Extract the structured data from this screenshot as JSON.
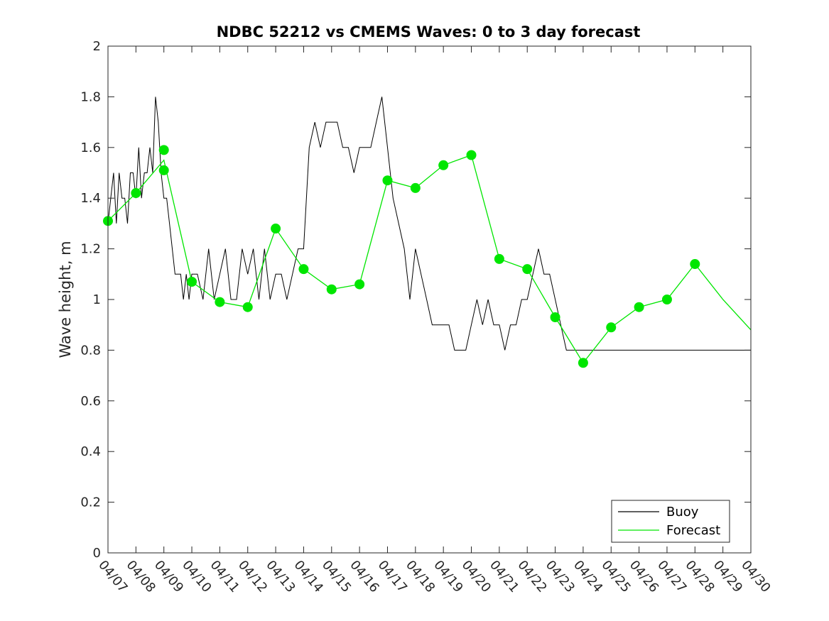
{
  "chart_data": {
    "type": "line",
    "title": "NDBC 52212 vs CMEMS Waves: 0 to 3 day forecast",
    "xlabel": "",
    "ylabel": "Wave height, m",
    "ylim": [
      0,
      2
    ],
    "yticks": [
      "0",
      "0.2",
      "0.4",
      "0.6",
      "0.8",
      "1",
      "1.2",
      "1.4",
      "1.6",
      "1.8",
      "2"
    ],
    "xlim": [
      "04/07",
      "04/30"
    ],
    "xticks": [
      "04/07",
      "04/08",
      "04/09",
      "04/10",
      "04/11",
      "04/12",
      "04/13",
      "04/14",
      "04/15",
      "04/16",
      "04/17",
      "04/18",
      "04/19",
      "04/20",
      "04/21",
      "04/22",
      "04/23",
      "04/24",
      "04/25",
      "04/26",
      "04/27",
      "04/28",
      "04/29",
      "04/30"
    ],
    "grid": false,
    "legend": {
      "position": "bottom-right",
      "entries": [
        {
          "label": "Buoy",
          "color": "#000000"
        },
        {
          "label": "Forecast",
          "color": "#00e600"
        }
      ]
    },
    "series": [
      {
        "name": "Buoy",
        "color": "#000000",
        "x": [
          0,
          0.1,
          0.2,
          0.3,
          0.4,
          0.5,
          0.6,
          0.7,
          0.8,
          0.9,
          1.0,
          1.1,
          1.2,
          1.3,
          1.4,
          1.5,
          1.6,
          1.7,
          1.8,
          1.9,
          2.0,
          2.1,
          2.2,
          2.3,
          2.4,
          2.5,
          2.6,
          2.7,
          2.8,
          2.9,
          3.0,
          3.2,
          3.4,
          3.6,
          3.8,
          4.0,
          4.2,
          4.4,
          4.6,
          4.8,
          5.0,
          5.2,
          5.4,
          5.6,
          5.8,
          6.0,
          6.2,
          6.4,
          6.6,
          6.8,
          7.0,
          7.2,
          7.4,
          7.6,
          7.8,
          8.0,
          8.2,
          8.4,
          8.6,
          8.8,
          9.0,
          9.2,
          9.4,
          9.6,
          9.8,
          10.0,
          10.2,
          10.4,
          10.6,
          10.8,
          11.0,
          11.2,
          11.4,
          11.6,
          11.8,
          12.0,
          12.2,
          12.4,
          12.6,
          12.8,
          13.0,
          13.2,
          13.4,
          13.6,
          13.8,
          14.0,
          14.2,
          14.4,
          14.6,
          14.8,
          15.0,
          15.2,
          15.4,
          15.6,
          15.8,
          16.0,
          16.2,
          16.4,
          16.6,
          16.8,
          17.0,
          17.5,
          18.0,
          18.5,
          19.0,
          19.2,
          19.4,
          19.6,
          19.8,
          20.0,
          20.2,
          20.4,
          20.6,
          20.8,
          21.0,
          21.2,
          21.4,
          21.6,
          21.8,
          22.0,
          22.2,
          22.4,
          22.6,
          22.8,
          23.0
        ],
        "y": [
          1.3,
          1.4,
          1.5,
          1.3,
          1.5,
          1.4,
          1.4,
          1.3,
          1.5,
          1.5,
          1.4,
          1.6,
          1.4,
          1.5,
          1.5,
          1.6,
          1.5,
          1.8,
          1.7,
          1.5,
          1.4,
          1.4,
          1.3,
          1.2,
          1.1,
          1.1,
          1.1,
          1.0,
          1.1,
          1.0,
          1.1,
          1.1,
          1.0,
          1.2,
          1.0,
          1.1,
          1.2,
          1.0,
          1.0,
          1.2,
          1.1,
          1.2,
          1.0,
          1.2,
          1.0,
          1.1,
          1.1,
          1.0,
          1.1,
          1.2,
          1.2,
          1.6,
          1.7,
          1.6,
          1.7,
          1.7,
          1.7,
          1.6,
          1.6,
          1.5,
          1.6,
          1.6,
          1.6,
          1.7,
          1.8,
          1.6,
          1.4,
          1.3,
          1.2,
          1.0,
          1.2,
          1.1,
          1.0,
          0.9,
          0.9,
          0.9,
          0.9,
          0.8,
          0.8,
          0.8,
          0.9,
          1.0,
          0.9,
          1.0,
          0.9,
          0.9,
          0.8,
          0.9,
          0.9,
          1.0,
          1.0,
          1.1,
          1.2,
          1.1,
          1.1,
          1.0,
          0.9,
          0.8,
          0.8,
          0.8,
          0.8,
          0.8,
          0.8,
          0.8,
          0.8,
          0.8,
          0.8,
          0.8,
          0.8,
          0.8,
          0.8,
          0.8,
          0.8,
          0.8,
          0.8,
          0.8,
          0.8,
          0.8,
          0.8,
          0.8,
          0.8,
          0.8,
          0.8,
          0.8,
          0.8
        ]
      },
      {
        "name": "Forecast",
        "color": "#00e600",
        "x": [
          0,
          1,
          2,
          3,
          4,
          5,
          6,
          7,
          8,
          9,
          10,
          11,
          12,
          13,
          14,
          15,
          16,
          17,
          18,
          19,
          20,
          21,
          22,
          23
        ],
        "y": [
          1.31,
          1.42,
          1.55,
          1.07,
          0.99,
          0.97,
          1.28,
          1.12,
          1.04,
          1.06,
          1.47,
          1.44,
          1.53,
          1.57,
          1.16,
          1.12,
          0.93,
          0.75,
          0.89,
          0.97,
          1.0,
          1.14,
          1.0,
          0.88
        ]
      }
    ],
    "forecast_markers": {
      "x": [
        0,
        1,
        2,
        2,
        3,
        4,
        5,
        6,
        7,
        8,
        9,
        10,
        11,
        12,
        13,
        14,
        15,
        16,
        17,
        18,
        19,
        20,
        21
      ],
      "y": [
        1.31,
        1.42,
        1.59,
        1.51,
        1.07,
        0.99,
        0.97,
        1.28,
        1.12,
        1.04,
        1.06,
        1.47,
        1.44,
        1.53,
        1.57,
        1.16,
        1.12,
        0.93,
        0.75,
        0.89,
        0.97,
        1.0,
        1.14
      ]
    }
  }
}
